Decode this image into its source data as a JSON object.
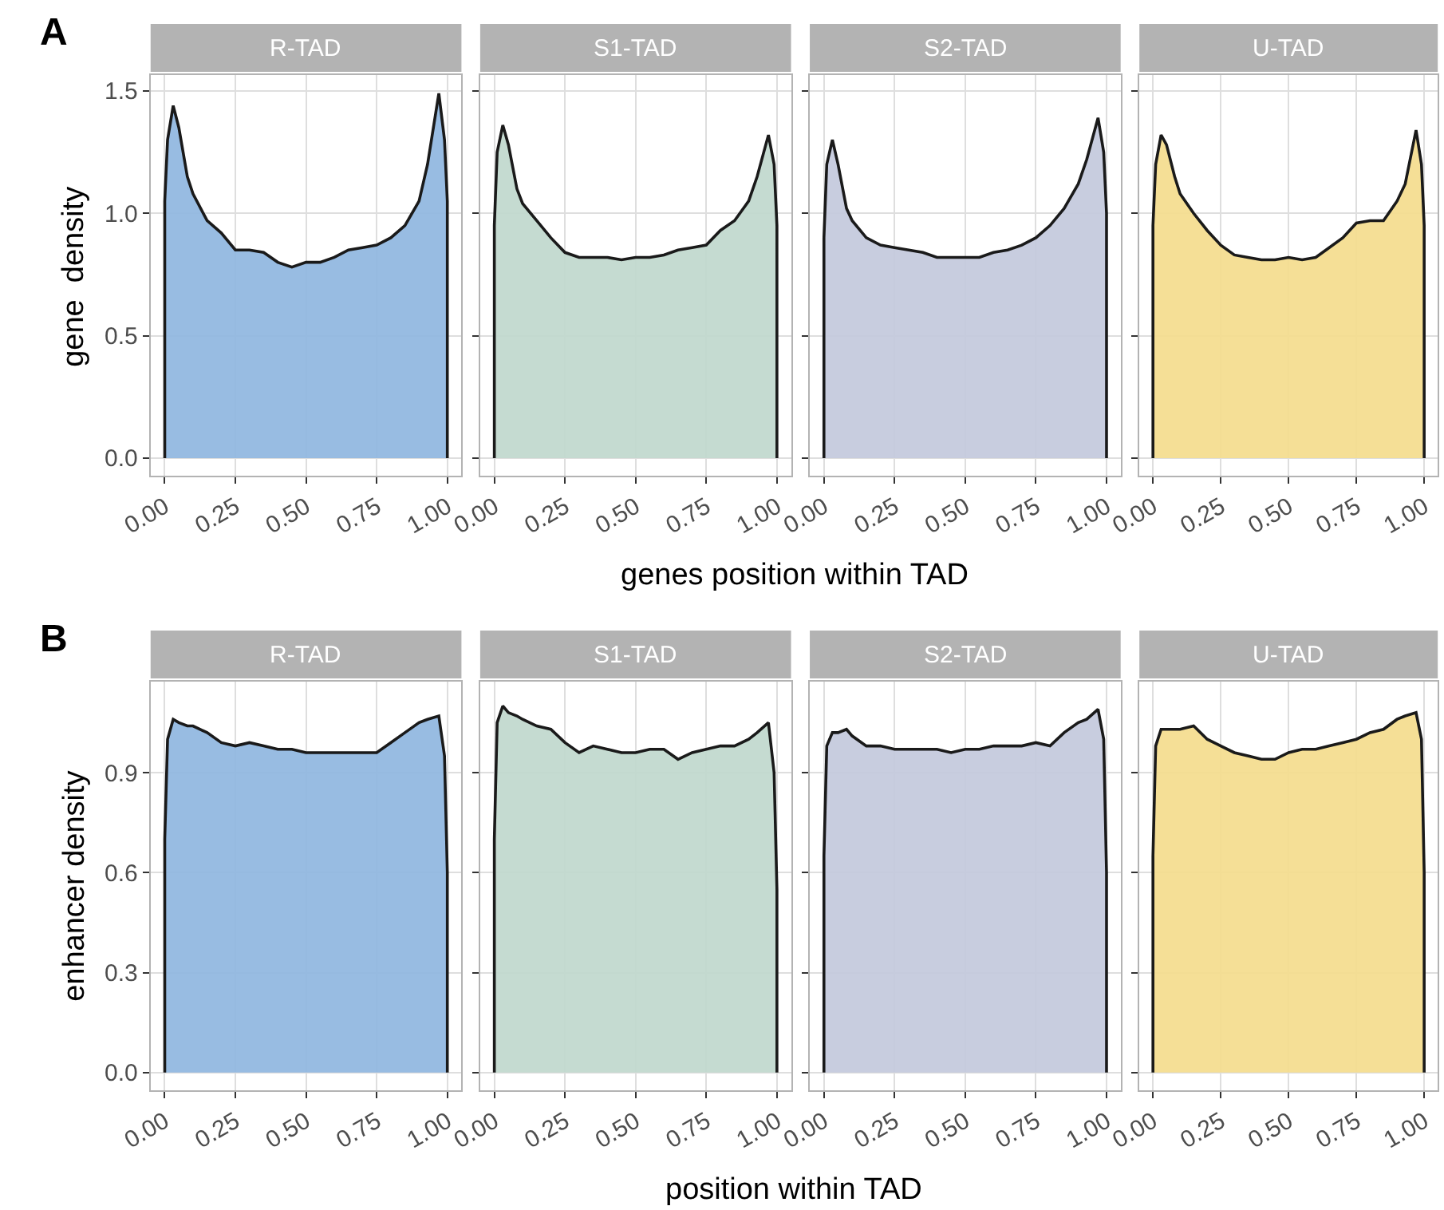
{
  "chart_data": [
    {
      "type": "area",
      "title": "R-TAD",
      "ylabel": "gene  density",
      "annotations": [
        "A"
      ],
      "grid": true,
      "x": [
        0,
        0,
        0.01,
        0.03,
        0.05,
        0.08,
        0.1,
        0.15,
        0.2,
        0.25,
        0.3,
        0.35,
        0.4,
        0.45,
        0.5,
        0.55,
        0.6,
        0.65,
        0.7,
        0.75,
        0.8,
        0.85,
        0.9,
        0.93,
        0.97,
        0.99,
        1,
        1
      ],
      "xlim": [
        -0.05,
        1.05
      ],
      "ylim": [
        -0.072,
        1.565
      ],
      "xticks": [
        {
          "value": 0,
          "label": "0.00"
        },
        {
          "value": 0.25,
          "label": "0.25"
        },
        {
          "value": 0.5,
          "label": "0.50"
        },
        {
          "value": 0.75,
          "label": "0.75"
        },
        {
          "value": 1,
          "label": "1.00"
        }
      ],
      "yticks": [
        {
          "value": 0,
          "label": "0.0"
        },
        {
          "value": 0.5,
          "label": "0.5"
        },
        {
          "value": 1,
          "label": "1.0"
        },
        {
          "value": 1.5,
          "label": "1.5"
        }
      ],
      "series": [
        {
          "color": "#8fb6df",
          "values": [
            0,
            1.05,
            1.3,
            1.44,
            1.35,
            1.15,
            1.08,
            0.97,
            0.92,
            0.85,
            0.85,
            0.84,
            0.8,
            0.78,
            0.8,
            0.8,
            0.82,
            0.85,
            0.86,
            0.87,
            0.9,
            0.95,
            1.05,
            1.2,
            1.49,
            1.3,
            1.05,
            0
          ]
        }
      ]
    },
    {
      "type": "area",
      "title": "S1-TAD",
      "tick_labels": "x",
      "grid": true,
      "x": [
        0,
        0,
        0.01,
        0.03,
        0.05,
        0.08,
        0.1,
        0.15,
        0.2,
        0.25,
        0.3,
        0.35,
        0.4,
        0.45,
        0.5,
        0.55,
        0.6,
        0.65,
        0.7,
        0.75,
        0.8,
        0.85,
        0.9,
        0.93,
        0.97,
        0.99,
        1,
        1
      ],
      "xlim": [
        -0.05,
        1.05
      ],
      "ylim": [
        -0.072,
        1.565
      ],
      "xticks": [
        {
          "value": 0,
          "label": "0.00"
        },
        {
          "value": 0.25,
          "label": "0.25"
        },
        {
          "value": 0.5,
          "label": "0.50"
        },
        {
          "value": 0.75,
          "label": "0.75"
        },
        {
          "value": 1,
          "label": "1.00"
        }
      ],
      "yticks": [
        {
          "value": 0,
          "label": null
        },
        {
          "value": 0.5,
          "label": null
        },
        {
          "value": 1,
          "label": null
        },
        {
          "value": 1.5,
          "label": null
        }
      ],
      "series": [
        {
          "color": "#c0d8cd",
          "values": [
            0,
            0.95,
            1.25,
            1.36,
            1.28,
            1.1,
            1.04,
            0.97,
            0.9,
            0.84,
            0.82,
            0.82,
            0.82,
            0.81,
            0.82,
            0.82,
            0.83,
            0.85,
            0.86,
            0.87,
            0.93,
            0.97,
            1.05,
            1.15,
            1.32,
            1.2,
            0.95,
            0
          ]
        }
      ]
    },
    {
      "type": "area",
      "title": "S2-TAD",
      "xlabel": "genes position within TAD",
      "tick_labels": "x",
      "grid": true,
      "x": [
        0,
        0,
        0.01,
        0.03,
        0.05,
        0.08,
        0.1,
        0.15,
        0.2,
        0.25,
        0.3,
        0.35,
        0.4,
        0.45,
        0.5,
        0.55,
        0.6,
        0.65,
        0.7,
        0.75,
        0.8,
        0.85,
        0.9,
        0.93,
        0.97,
        0.99,
        1,
        1
      ],
      "xlim": [
        -0.05,
        1.05
      ],
      "ylim": [
        -0.072,
        1.565
      ],
      "xticks": [
        {
          "value": 0,
          "label": "0.00"
        },
        {
          "value": 0.25,
          "label": "0.25"
        },
        {
          "value": 0.5,
          "label": "0.50"
        },
        {
          "value": 0.75,
          "label": "0.75"
        },
        {
          "value": 1,
          "label": "1.00"
        }
      ],
      "yticks": [
        {
          "value": 0,
          "label": null
        },
        {
          "value": 0.5,
          "label": null
        },
        {
          "value": 1,
          "label": null
        },
        {
          "value": 1.5,
          "label": null
        }
      ],
      "series": [
        {
          "color": "#c3c9dc",
          "values": [
            0,
            0.9,
            1.2,
            1.3,
            1.2,
            1.02,
            0.97,
            0.9,
            0.87,
            0.86,
            0.85,
            0.84,
            0.82,
            0.82,
            0.82,
            0.82,
            0.84,
            0.85,
            0.87,
            0.9,
            0.95,
            1.02,
            1.12,
            1.22,
            1.39,
            1.25,
            1.0,
            0
          ]
        }
      ]
    },
    {
      "type": "area",
      "title": "U-TAD",
      "tick_labels": "x",
      "grid": true,
      "x": [
        0,
        0,
        0.01,
        0.03,
        0.05,
        0.08,
        0.1,
        0.15,
        0.2,
        0.25,
        0.3,
        0.35,
        0.4,
        0.45,
        0.5,
        0.55,
        0.6,
        0.65,
        0.7,
        0.75,
        0.8,
        0.85,
        0.9,
        0.93,
        0.97,
        0.99,
        1,
        1
      ],
      "xlim": [
        -0.05,
        1.05
      ],
      "ylim": [
        -0.072,
        1.565
      ],
      "xticks": [
        {
          "value": 0,
          "label": "0.00"
        },
        {
          "value": 0.25,
          "label": "0.25"
        },
        {
          "value": 0.5,
          "label": "0.50"
        },
        {
          "value": 0.75,
          "label": "0.75"
        },
        {
          "value": 1,
          "label": "1.00"
        }
      ],
      "yticks": [
        {
          "value": 0,
          "label": null
        },
        {
          "value": 0.5,
          "label": null
        },
        {
          "value": 1,
          "label": null
        },
        {
          "value": 1.5,
          "label": null
        }
      ],
      "series": [
        {
          "color": "#f4dc8d",
          "values": [
            0,
            0.95,
            1.2,
            1.32,
            1.28,
            1.15,
            1.08,
            1.0,
            0.93,
            0.87,
            0.83,
            0.82,
            0.81,
            0.81,
            0.82,
            0.81,
            0.82,
            0.86,
            0.9,
            0.96,
            0.97,
            0.97,
            1.05,
            1.12,
            1.34,
            1.2,
            0.95,
            0
          ]
        }
      ]
    },
    {
      "type": "area",
      "title": "R-TAD",
      "ylabel": "enhancer density",
      "annotations": [
        "B"
      ],
      "grid": true,
      "x": [
        0,
        0,
        0.01,
        0.03,
        0.05,
        0.08,
        0.1,
        0.15,
        0.2,
        0.25,
        0.3,
        0.35,
        0.4,
        0.45,
        0.5,
        0.55,
        0.6,
        0.65,
        0.7,
        0.75,
        0.8,
        0.85,
        0.9,
        0.93,
        0.97,
        0.99,
        1,
        1
      ],
      "xlim": [
        -0.05,
        1.05
      ],
      "ylim": [
        -0.053,
        1.173
      ],
      "xticks": [
        {
          "value": 0,
          "label": "0.00"
        },
        {
          "value": 0.25,
          "label": "0.25"
        },
        {
          "value": 0.5,
          "label": "0.50"
        },
        {
          "value": 0.75,
          "label": "0.75"
        },
        {
          "value": 1,
          "label": "1.00"
        }
      ],
      "yticks": [
        {
          "value": 0,
          "label": "0.0"
        },
        {
          "value": 0.3,
          "label": "0.3"
        },
        {
          "value": 0.6,
          "label": "0.6"
        },
        {
          "value": 0.9,
          "label": "0.9"
        }
      ],
      "series": [
        {
          "color": "#8fb6df",
          "values": [
            0,
            0.7,
            1.0,
            1.06,
            1.05,
            1.04,
            1.04,
            1.02,
            0.99,
            0.98,
            0.99,
            0.98,
            0.97,
            0.97,
            0.96,
            0.96,
            0.96,
            0.96,
            0.96,
            0.96,
            0.99,
            1.02,
            1.05,
            1.06,
            1.07,
            0.95,
            0.6,
            0
          ]
        }
      ]
    },
    {
      "type": "area",
      "title": "S1-TAD",
      "tick_labels": "x",
      "grid": true,
      "x": [
        0,
        0,
        0.01,
        0.03,
        0.05,
        0.08,
        0.1,
        0.15,
        0.2,
        0.25,
        0.3,
        0.35,
        0.4,
        0.45,
        0.5,
        0.55,
        0.6,
        0.65,
        0.7,
        0.75,
        0.8,
        0.85,
        0.9,
        0.93,
        0.97,
        0.99,
        1,
        1
      ],
      "xlim": [
        -0.05,
        1.05
      ],
      "ylim": [
        -0.053,
        1.173
      ],
      "xticks": [
        {
          "value": 0,
          "label": "0.00"
        },
        {
          "value": 0.25,
          "label": "0.25"
        },
        {
          "value": 0.5,
          "label": "0.50"
        },
        {
          "value": 0.75,
          "label": "0.75"
        },
        {
          "value": 1,
          "label": "1.00"
        }
      ],
      "yticks": [
        {
          "value": 0,
          "label": null
        },
        {
          "value": 0.3,
          "label": null
        },
        {
          "value": 0.6,
          "label": null
        },
        {
          "value": 0.9,
          "label": null
        }
      ],
      "series": [
        {
          "color": "#c0d8cd",
          "values": [
            0,
            0.7,
            1.05,
            1.1,
            1.08,
            1.07,
            1.06,
            1.04,
            1.03,
            0.99,
            0.96,
            0.98,
            0.97,
            0.96,
            0.96,
            0.97,
            0.97,
            0.94,
            0.96,
            0.97,
            0.98,
            0.98,
            1.0,
            1.02,
            1.05,
            0.9,
            0.55,
            0
          ]
        }
      ]
    },
    {
      "type": "area",
      "title": "S2-TAD",
      "xlabel": "position within TAD",
      "tick_labels": "x",
      "grid": true,
      "x": [
        0,
        0,
        0.01,
        0.03,
        0.05,
        0.08,
        0.1,
        0.15,
        0.2,
        0.25,
        0.3,
        0.35,
        0.4,
        0.45,
        0.5,
        0.55,
        0.6,
        0.65,
        0.7,
        0.75,
        0.8,
        0.85,
        0.9,
        0.93,
        0.97,
        0.99,
        1,
        1
      ],
      "xlim": [
        -0.05,
        1.05
      ],
      "ylim": [
        -0.053,
        1.173
      ],
      "xticks": [
        {
          "value": 0,
          "label": "0.00"
        },
        {
          "value": 0.25,
          "label": "0.25"
        },
        {
          "value": 0.5,
          "label": "0.50"
        },
        {
          "value": 0.75,
          "label": "0.75"
        },
        {
          "value": 1,
          "label": "1.00"
        }
      ],
      "yticks": [
        {
          "value": 0,
          "label": null
        },
        {
          "value": 0.3,
          "label": null
        },
        {
          "value": 0.6,
          "label": null
        },
        {
          "value": 0.9,
          "label": null
        }
      ],
      "series": [
        {
          "color": "#c3c9dc",
          "values": [
            0,
            0.65,
            0.98,
            1.02,
            1.02,
            1.03,
            1.01,
            0.98,
            0.98,
            0.97,
            0.97,
            0.97,
            0.97,
            0.96,
            0.97,
            0.97,
            0.98,
            0.98,
            0.98,
            0.99,
            0.98,
            1.02,
            1.05,
            1.06,
            1.09,
            1.0,
            0.6,
            0
          ]
        }
      ]
    },
    {
      "type": "area",
      "title": "U-TAD",
      "tick_labels": "x",
      "grid": true,
      "x": [
        0,
        0,
        0.01,
        0.03,
        0.05,
        0.08,
        0.1,
        0.15,
        0.2,
        0.25,
        0.3,
        0.35,
        0.4,
        0.45,
        0.5,
        0.55,
        0.6,
        0.65,
        0.7,
        0.75,
        0.8,
        0.85,
        0.9,
        0.93,
        0.97,
        0.99,
        1,
        1
      ],
      "xlim": [
        -0.05,
        1.05
      ],
      "ylim": [
        -0.053,
        1.173
      ],
      "xticks": [
        {
          "value": 0,
          "label": "0.00"
        },
        {
          "value": 0.25,
          "label": "0.25"
        },
        {
          "value": 0.5,
          "label": "0.50"
        },
        {
          "value": 0.75,
          "label": "0.75"
        },
        {
          "value": 1,
          "label": "1.00"
        }
      ],
      "yticks": [
        {
          "value": 0,
          "label": null
        },
        {
          "value": 0.3,
          "label": null
        },
        {
          "value": 0.6,
          "label": null
        },
        {
          "value": 0.9,
          "label": null
        }
      ],
      "series": [
        {
          "color": "#f4dc8d",
          "values": [
            0,
            0.65,
            0.98,
            1.03,
            1.03,
            1.03,
            1.03,
            1.04,
            1.0,
            0.98,
            0.96,
            0.95,
            0.94,
            0.94,
            0.96,
            0.97,
            0.97,
            0.98,
            0.99,
            1.0,
            1.02,
            1.03,
            1.06,
            1.07,
            1.08,
            1.0,
            0.6,
            0
          ]
        }
      ]
    }
  ]
}
